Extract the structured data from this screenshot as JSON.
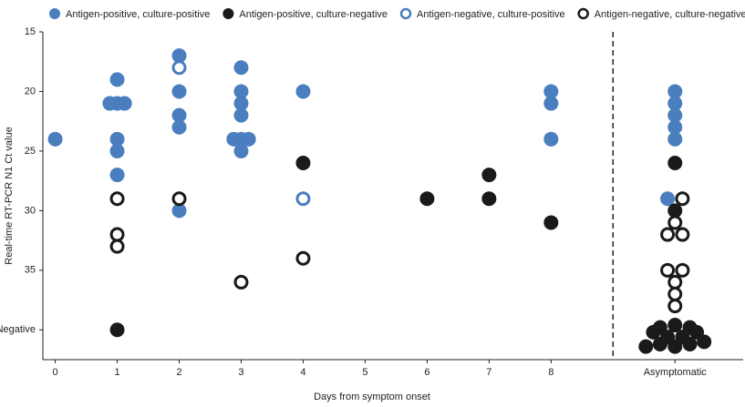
{
  "chart_data": {
    "type": "scatter",
    "x_label": "Days from symptom onset",
    "y_label": "Real-time RT-PCR N1 Ct value",
    "xlim": [
      -0.2,
      11.1
    ],
    "xticks": [
      0,
      1,
      2,
      3,
      4,
      5,
      6,
      7,
      8,
      {
        "value": 10,
        "label": "Asymptomatic"
      }
    ],
    "ylim": [
      15,
      42.5
    ],
    "y_reversed": true,
    "yticks": [
      15,
      20,
      25,
      30,
      35,
      {
        "value": 40,
        "label": "Negative"
      }
    ],
    "grid": false,
    "legend": "top",
    "series": [
      {
        "name": "Antigen-positive, culture-positive",
        "color": "#4a7ebf",
        "marker": "filled",
        "x": [
          0,
          1,
          0.88,
          1,
          1.12,
          1,
          1,
          1,
          2,
          2,
          2,
          2,
          2,
          3,
          3,
          3,
          3,
          2.88,
          3,
          3.12,
          3,
          4,
          8,
          8,
          8,
          10,
          10,
          10,
          10,
          10,
          9.88
        ],
        "y": [
          24,
          19,
          21,
          21,
          21,
          24,
          25,
          27,
          17,
          20,
          22,
          23,
          30,
          18,
          20,
          21,
          22,
          24,
          24,
          24,
          25,
          20,
          20,
          21,
          24,
          20,
          21,
          22,
          23,
          24,
          29
        ]
      },
      {
        "name": "Antigen-positive, culture-negative",
        "color": "#1a1a1a",
        "marker": "filled",
        "x": [
          1,
          4,
          6,
          7,
          7,
          8,
          10,
          10,
          10,
          9.76,
          10.24,
          9.65,
          10.35,
          9.88,
          10.12,
          9.53,
          9.76,
          10,
          10.24,
          10.47
        ],
        "y": [
          40,
          26,
          29,
          27,
          29,
          31,
          26,
          30,
          39.6,
          39.8,
          39.8,
          40.2,
          40.2,
          40.6,
          40.6,
          41.4,
          41.2,
          41.4,
          41.2,
          41
        ]
      },
      {
        "name": "Antigen-negative, culture-positive",
        "color": "#4a7ebf",
        "marker": "open",
        "x": [
          2,
          4
        ],
        "y": [
          18,
          29
        ]
      },
      {
        "name": "Antigen-negative, culture-negative",
        "color": "#1a1a1a",
        "marker": "open",
        "x": [
          1,
          1,
          1,
          2,
          3,
          4,
          10.12,
          10,
          9.88,
          10.12,
          9.88,
          10.12,
          10,
          10,
          10
        ],
        "y": [
          29,
          32,
          33,
          29,
          36,
          34,
          29,
          31,
          32,
          32,
          35,
          35,
          36,
          37,
          38
        ]
      }
    ]
  }
}
